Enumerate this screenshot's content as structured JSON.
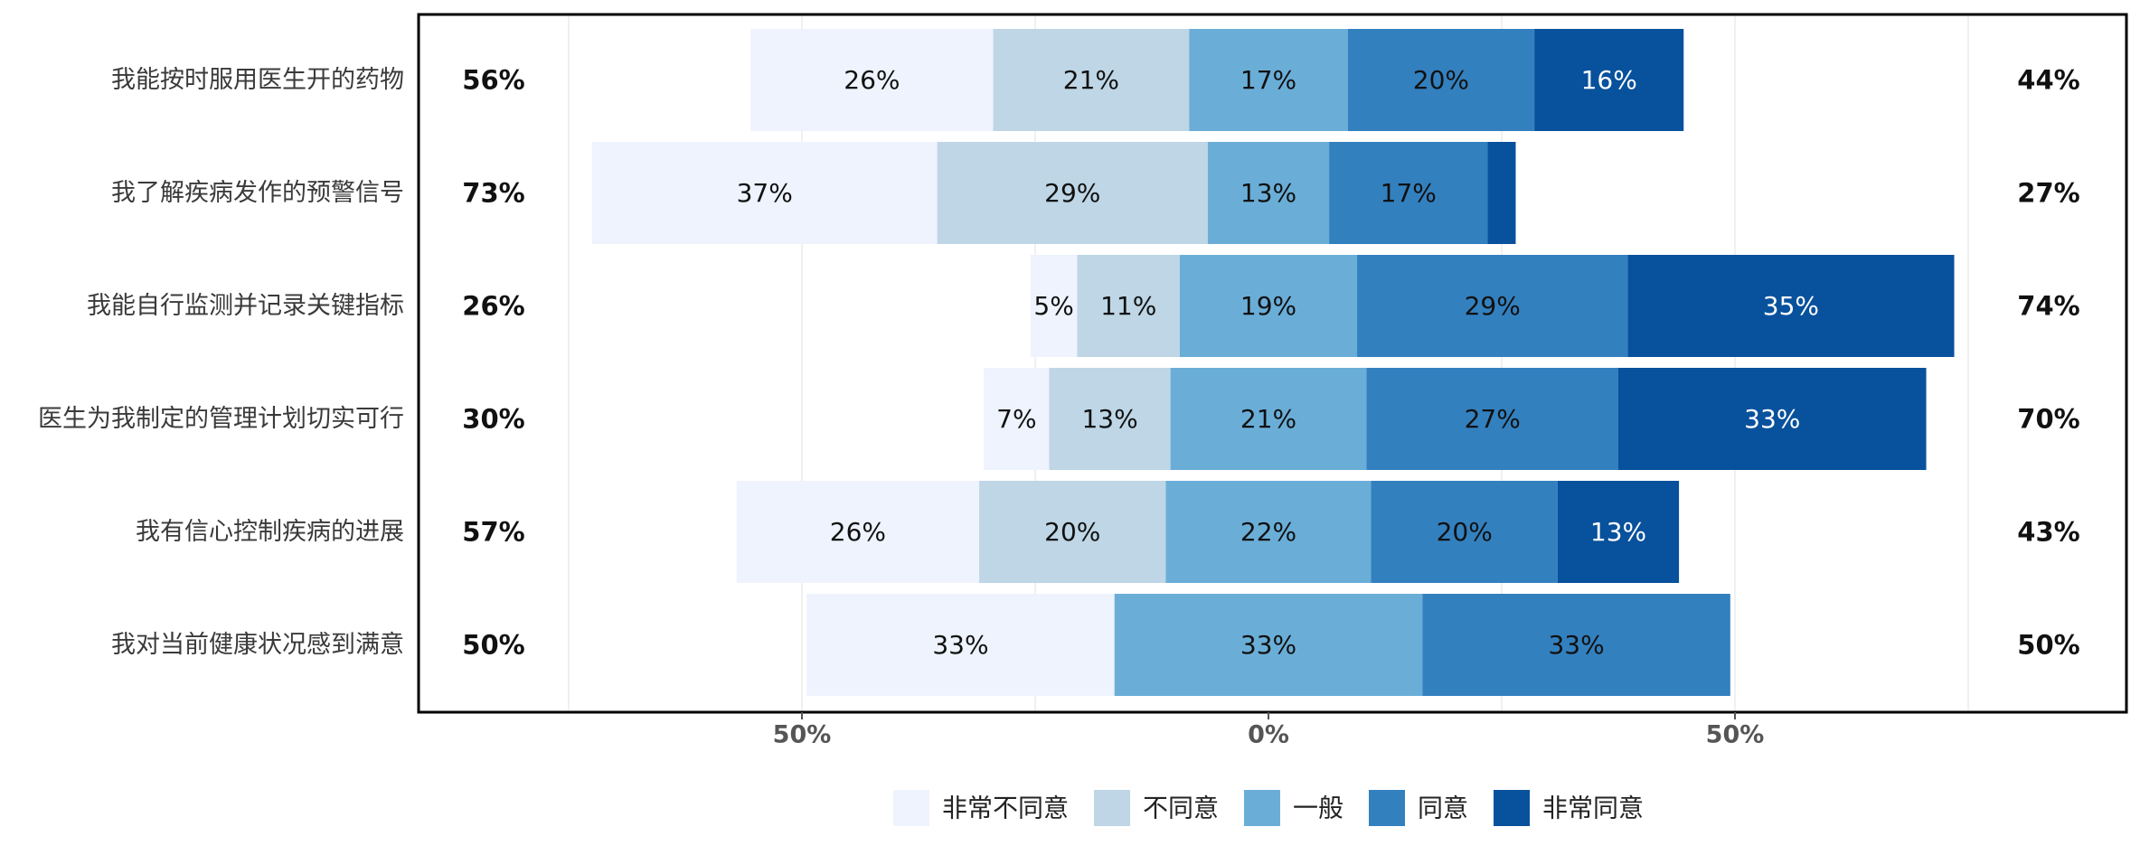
{
  "chart_data": {
    "type": "bar",
    "orientation": "horizontal",
    "stacked": "diverging",
    "categories": [
      "我能按时服用医生开的药物",
      "我了解疾病发作的预警信号",
      "我能自行监测并记录关键指标",
      "医生为我制定的管理计划切实可行",
      "我有信心控制疾病的进展",
      "我对当前健康状况感到满意"
    ],
    "series": [
      {
        "name": "非常不同意",
        "color": "#eef3fd",
        "values": [
          26,
          37,
          5,
          7,
          26,
          33
        ]
      },
      {
        "name": "不同意",
        "color": "#bed6e6",
        "values": [
          21,
          29,
          11,
          13,
          20,
          0
        ]
      },
      {
        "name": "一般",
        "color": "#6aaed8",
        "values": [
          17,
          13,
          19,
          21,
          22,
          33
        ]
      },
      {
        "name": "同意",
        "color": "#3380bf",
        "values": [
          20,
          17,
          29,
          27,
          20,
          33
        ]
      },
      {
        "name": "非常同意",
        "color": "#08519c",
        "values": [
          16,
          3,
          35,
          33,
          13,
          0
        ]
      }
    ],
    "segment_labels": [
      [
        "26%",
        "21%",
        "17%",
        "20%",
        "16%"
      ],
      [
        "37%",
        "29%",
        "13%",
        "17%",
        ""
      ],
      [
        "5%",
        "11%",
        "19%",
        "29%",
        "35%"
      ],
      [
        "7%",
        "13%",
        "21%",
        "27%",
        "33%"
      ],
      [
        "26%",
        "20%",
        "22%",
        "20%",
        "13%"
      ],
      [
        "33%",
        "",
        "33%",
        "33%",
        ""
      ]
    ],
    "left_totals": [
      "56%",
      "73%",
      "26%",
      "30%",
      "57%",
      "50%"
    ],
    "right_totals": [
      "44%",
      "27%",
      "74%",
      "70%",
      "43%",
      "50%"
    ],
    "xaxis": {
      "ticks": [
        -50,
        0,
        50
      ],
      "tick_labels": [
        "50%",
        "0%",
        "50%"
      ],
      "range": [
        -91,
        91
      ]
    },
    "grid": true,
    "legend_position": "bottom",
    "title": "",
    "xlabel": "",
    "ylabel": ""
  }
}
